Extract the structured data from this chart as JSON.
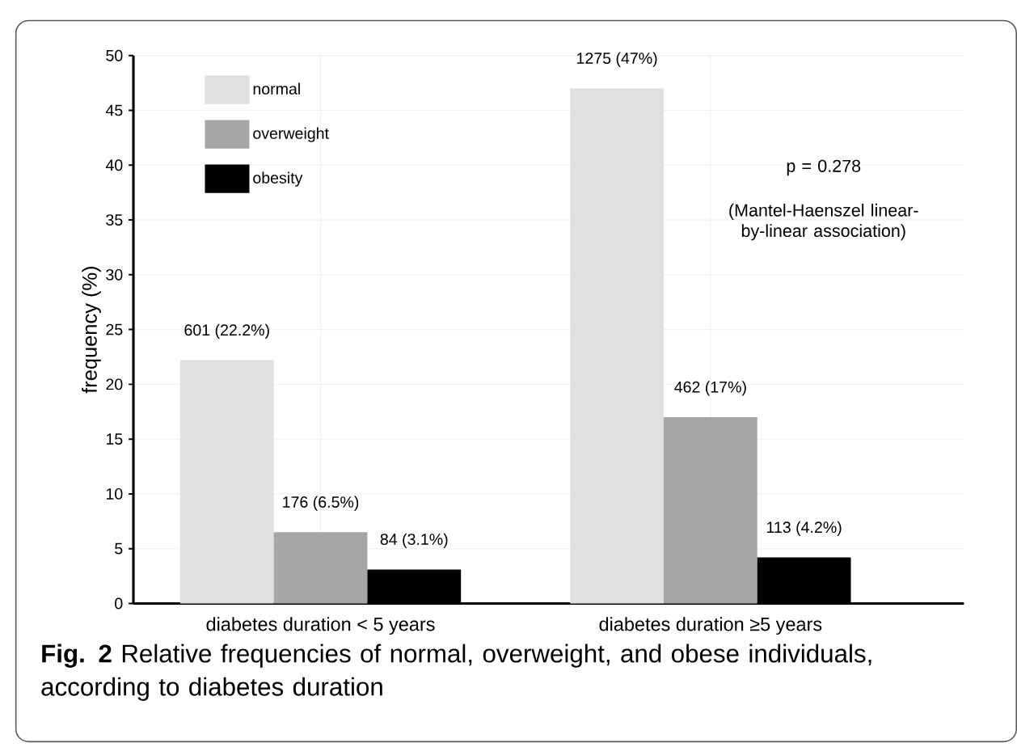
{
  "chart_data": {
    "type": "bar",
    "ylabel": "frequency (%)",
    "categories": [
      "diabetes duration < 5 years",
      "diabetes duration  ≥5 years"
    ],
    "series": [
      {
        "name": "normal",
        "color": "#e0e0e0",
        "values": [
          22.2,
          47
        ],
        "value_labels": [
          "601 (22.2%)",
          "1275 (47%)"
        ]
      },
      {
        "name": "overweight",
        "color": "#a6a6a6",
        "values": [
          6.5,
          17
        ],
        "value_labels": [
          "176 (6.5%)",
          "462 (17%)"
        ]
      },
      {
        "name": "obesity",
        "color": "#000000",
        "values": [
          3.1,
          4.2
        ],
        "value_labels": [
          "84 (3.1%)",
          "113 (4.2%)"
        ]
      }
    ],
    "ylim": [
      0,
      50
    ],
    "yticks": [
      0,
      5,
      10,
      15,
      20,
      25,
      30,
      35,
      40,
      45,
      50
    ],
    "grid": true,
    "legend": "top left",
    "annotations": [
      "p = 0.278",
      "(Mantel-Haenszel linear-by-linear association)",
      "**Fig. 2** Relative frequencies of normal, overweight, and obese individuals, according to diabetes duration"
    ]
  }
}
